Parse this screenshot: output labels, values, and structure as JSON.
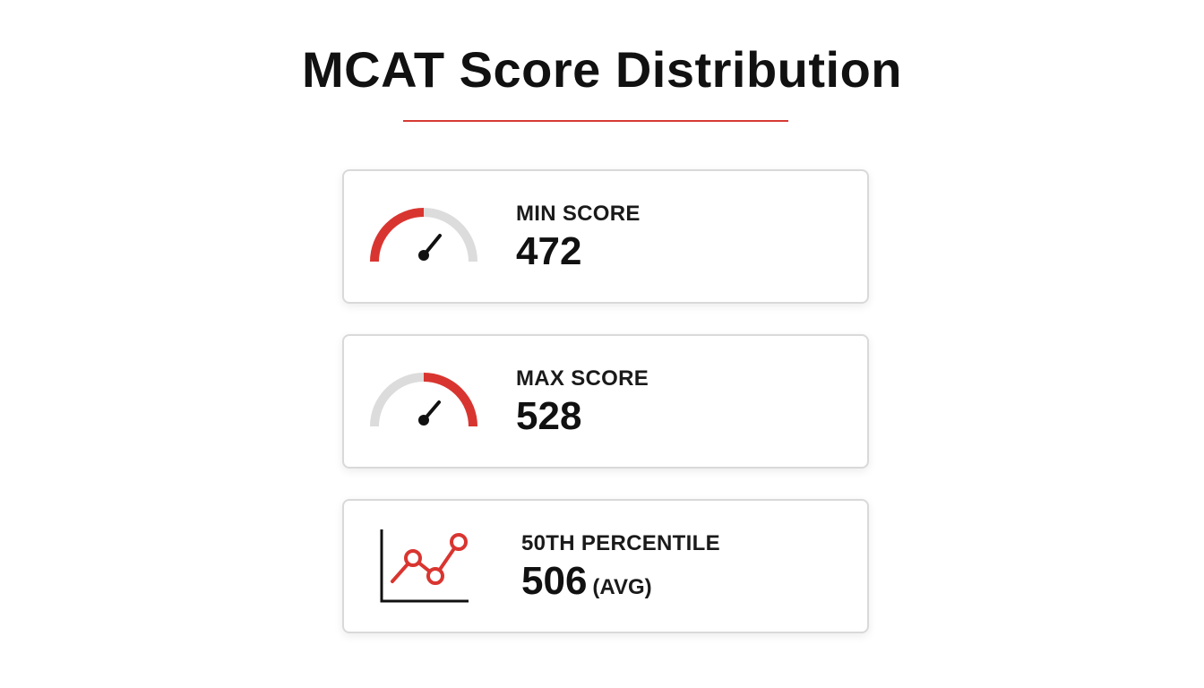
{
  "title": "MCAT Score Distribution",
  "accent_color": "#d63a34",
  "cards": [
    {
      "icon": "gauge-low-icon",
      "label": "MIN SCORE",
      "value": "472",
      "suffix": ""
    },
    {
      "icon": "gauge-high-icon",
      "label": "MAX SCORE",
      "value": "528",
      "suffix": ""
    },
    {
      "icon": "line-chart-icon",
      "label": "50TH PERCENTILE",
      "value": "506",
      "suffix": "(AVG)"
    }
  ]
}
